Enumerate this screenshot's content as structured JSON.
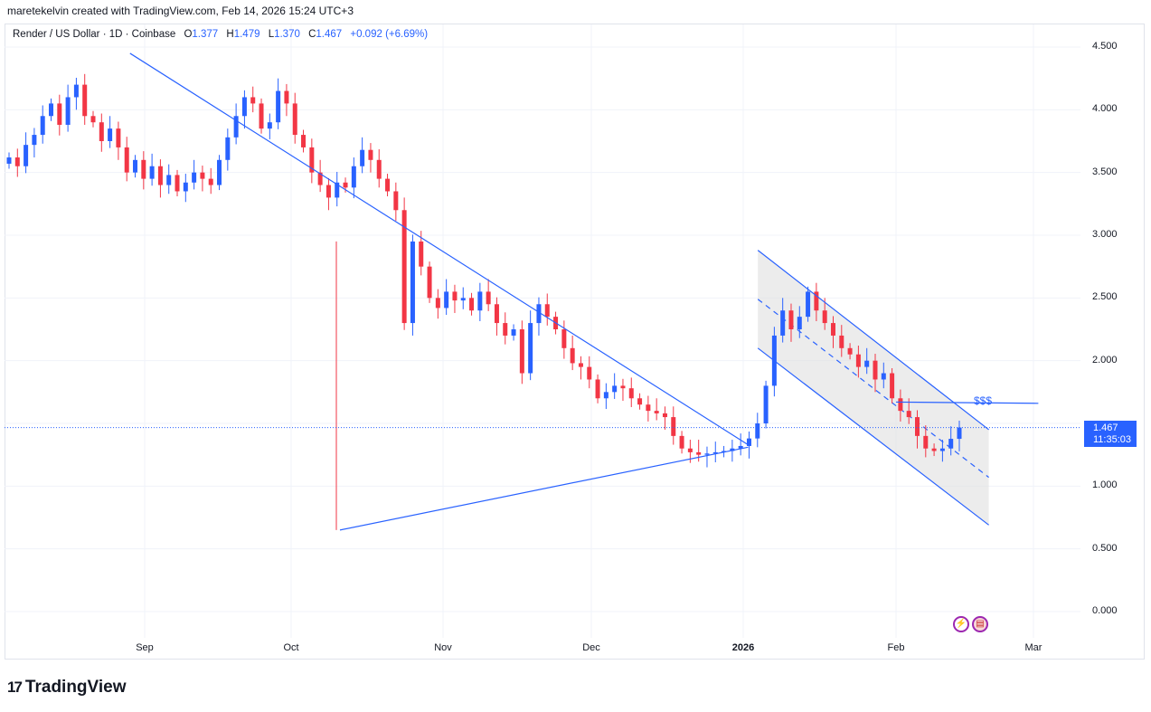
{
  "header": {
    "text": "maretekelvin created with TradingView.com, Feb 14, 2026 15:24 UTC+3"
  },
  "legend": {
    "symbol": "Render / US Dollar · 1D · Coinbase",
    "open_label": "O",
    "open": "1.377",
    "high_label": "H",
    "high": "1.479",
    "low_label": "L",
    "low": "1.370",
    "close_label": "C",
    "close": "1.467",
    "change": "+0.092 (+6.69%)"
  },
  "price_tag": {
    "price": "1.467",
    "countdown": "11:35:03"
  },
  "annotation": {
    "target": "$$$"
  },
  "brand": {
    "name": "TradingView",
    "mark": "17"
  },
  "icons": [
    "lightning-icon",
    "flag-icon"
  ],
  "colors": {
    "up": "#2962ff",
    "down": "#f23645",
    "drawing": "#2962ff",
    "channel_fill": "#e0e0e0"
  },
  "chart_data": {
    "type": "candlestick",
    "title": "Render / US Dollar · 1D · Coinbase",
    "ylim": [
      0.0,
      4.5
    ],
    "y_ticks": [
      "4.500",
      "4.000",
      "3.500",
      "3.000",
      "2.500",
      "2.000",
      "1.500",
      "1.000",
      "0.500",
      "0.000"
    ],
    "x_ticks": [
      {
        "label": "Sep",
        "bold": false
      },
      {
        "label": "Oct",
        "bold": false
      },
      {
        "label": "Nov",
        "bold": false
      },
      {
        "label": "Dec",
        "bold": false
      },
      {
        "label": "2026",
        "bold": true
      },
      {
        "label": "Feb",
        "bold": false
      },
      {
        "label": "Mar",
        "bold": false
      }
    ],
    "last_price": 1.467,
    "closes": [
      3.62,
      3.55,
      3.72,
      3.8,
      3.95,
      4.05,
      3.88,
      4.1,
      4.2,
      3.95,
      3.9,
      3.75,
      3.85,
      3.7,
      3.5,
      3.6,
      3.45,
      3.55,
      3.4,
      3.48,
      3.35,
      3.42,
      3.5,
      3.45,
      3.4,
      3.6,
      3.78,
      3.95,
      4.1,
      4.05,
      3.85,
      3.9,
      4.15,
      4.05,
      3.8,
      3.7,
      3.5,
      3.4,
      3.3,
      3.42,
      3.38,
      3.55,
      3.68,
      3.6,
      3.45,
      3.35,
      3.2,
      2.3,
      2.95,
      2.75,
      2.5,
      2.42,
      2.55,
      2.48,
      2.5,
      2.4,
      2.55,
      2.45,
      2.3,
      2.2,
      2.25,
      1.9,
      2.3,
      2.45,
      2.35,
      2.25,
      2.1,
      1.98,
      1.95,
      1.85,
      1.7,
      1.75,
      1.8,
      1.78,
      1.7,
      1.65,
      1.6,
      1.58,
      1.55,
      1.4,
      1.3,
      1.27,
      1.25,
      1.26,
      1.27,
      1.28,
      1.3,
      1.32,
      1.38,
      1.5,
      1.8,
      2.2,
      2.4,
      2.25,
      2.35,
      2.55,
      2.4,
      2.3,
      2.2,
      2.1,
      2.05,
      1.95,
      2.0,
      1.85,
      1.9,
      1.7,
      1.6,
      1.55,
      1.4,
      1.3,
      1.28,
      1.3,
      1.377,
      1.467
    ],
    "trendlines": [
      {
        "name": "descending-resistance",
        "from": {
          "date": "Aug 29",
          "price": 4.45
        },
        "to": {
          "date": "Jan 02",
          "price": 1.33
        }
      },
      {
        "name": "ascending-support",
        "from": {
          "date": "Oct 11",
          "price": 0.65
        },
        "to": {
          "date": "Jan 02",
          "price": 1.31
        }
      },
      {
        "name": "channel-top",
        "from": {
          "date": "Jan 04",
          "price": 2.88
        },
        "to": {
          "date": "Feb 20",
          "price": 1.45
        }
      },
      {
        "name": "channel-bottom",
        "from": {
          "date": "Jan 04",
          "price": 2.1
        },
        "to": {
          "date": "Feb 20",
          "price": 0.69
        }
      },
      {
        "name": "target-line",
        "from": {
          "date": "Feb 01",
          "price": 1.67
        },
        "to": {
          "date": "Mar 02",
          "price": 1.66
        }
      }
    ]
  }
}
